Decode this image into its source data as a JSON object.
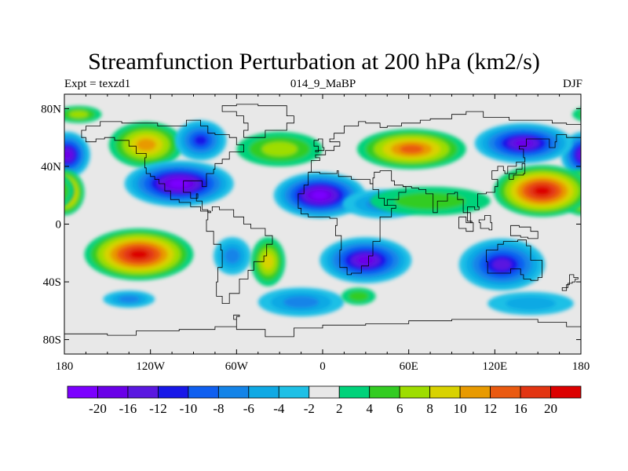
{
  "map": {
    "title": "Streamfunction Perturbation at 200 hPa (km2/s)",
    "subtitle_left": "Expt = texzd1",
    "subtitle_center": "014_9_MaBP",
    "subtitle_right": "DJF",
    "projection": "cylindrical equidistant",
    "lon_range": [
      -180,
      180
    ],
    "lat_range": [
      -90,
      90
    ],
    "lat_ticks": [
      {
        "lat": 80,
        "label": "80N"
      },
      {
        "lat": 40,
        "label": "40N"
      },
      {
        "lat": 0,
        "label": "0"
      },
      {
        "lat": -40,
        "label": "40S"
      },
      {
        "lat": -80,
        "label": "80S"
      }
    ],
    "lon_ticks": [
      {
        "lon": -180,
        "label": "180"
      },
      {
        "lon": -120,
        "label": "120W"
      },
      {
        "lon": -60,
        "label": "60W"
      },
      {
        "lon": 0,
        "label": "0"
      },
      {
        "lon": 60,
        "label": "60E"
      },
      {
        "lon": 120,
        "label": "120E"
      },
      {
        "lon": 180,
        "label": "180"
      }
    ],
    "features": [
      {
        "name": "blob-np-west-neg",
        "lon": -178,
        "lat": 48,
        "rlon": 16,
        "rlat": 16,
        "value": -16
      },
      {
        "name": "blob-np-west-pos",
        "lon": -180,
        "lat": 22,
        "rlon": 14,
        "rlat": 16,
        "value": 16
      },
      {
        "name": "blob-na-pos",
        "lon": -123,
        "lat": 55,
        "rlon": 26,
        "rlat": 16,
        "value": 10
      },
      {
        "name": "blob-na-neg",
        "lon": -100,
        "lat": 28,
        "rlon": 38,
        "rlat": 16,
        "value": -22
      },
      {
        "name": "blob-na-neg-north",
        "lon": -85,
        "lat": 58,
        "rlon": 18,
        "rlat": 14,
        "value": -10
      },
      {
        "name": "blob-atl-pos",
        "lon": -30,
        "lat": 52,
        "rlon": 30,
        "rlat": 12,
        "value": 6
      },
      {
        "name": "blob-eur-pos",
        "lon": 62,
        "lat": 52,
        "rlon": 38,
        "rlat": 14,
        "value": 14
      },
      {
        "name": "blob-asia-neg",
        "lon": -2,
        "lat": 20,
        "rlon": 32,
        "rlat": 16,
        "value": -20
      },
      {
        "name": "blob-asia-trough",
        "lon": 42,
        "lat": 14,
        "rlon": 28,
        "rlat": 10,
        "value": -6
      },
      {
        "name": "blob-ind-pos",
        "lon": 75,
        "lat": 16,
        "rlon": 42,
        "rlat": 10,
        "value": 4
      },
      {
        "name": "blob-pac-high",
        "lon": 153,
        "lat": 23,
        "rlon": 34,
        "rlat": 18,
        "value": 22
      },
      {
        "name": "blob-pac-neg",
        "lon": 140,
        "lat": 56,
        "rlon": 34,
        "rlat": 14,
        "value": -16
      },
      {
        "name": "blob-sp-pos",
        "lon": -128,
        "lat": -21,
        "rlon": 38,
        "rlat": 18,
        "value": 22
      },
      {
        "name": "blob-sa-neg",
        "lon": -63,
        "lat": -22,
        "rlon": 13,
        "rlat": 13,
        "value": -6
      },
      {
        "name": "blob-satl-pos",
        "lon": -38,
        "lat": -26,
        "rlon": 12,
        "rlat": 17,
        "value": 8
      },
      {
        "name": "blob-afr-neg",
        "lon": 30,
        "lat": -25,
        "rlon": 32,
        "rlat": 16,
        "value": -16
      },
      {
        "name": "blob-sind-neg",
        "lon": 125,
        "lat": -28,
        "rlon": 30,
        "rlat": 18,
        "value": -14
      },
      {
        "name": "blob-ssp-neg",
        "lon": -135,
        "lat": -52,
        "rlon": 18,
        "rlat": 6,
        "value": -6
      },
      {
        "name": "blob-so-neg",
        "lon": -15,
        "lat": -54,
        "rlon": 30,
        "rlat": 10,
        "value": -6
      },
      {
        "name": "blob-so-pos",
        "lon": 25,
        "lat": -50,
        "rlon": 12,
        "rlat": 6,
        "value": 4
      },
      {
        "name": "blob-spac-neg",
        "lon": 145,
        "lat": -55,
        "rlon": 30,
        "rlat": 8,
        "value": -4
      },
      {
        "name": "blob-arctic-pos",
        "lon": -170,
        "lat": 76,
        "rlon": 16,
        "rlat": 6,
        "value": 6
      }
    ]
  },
  "colorbar": {
    "labels": [
      "-20",
      "-16",
      "-12",
      "-10",
      "-8",
      "-6",
      "-4",
      "-2",
      "2",
      "4",
      "6",
      "8",
      "10",
      "12",
      "16",
      "20"
    ],
    "colors": [
      "#7c00ff",
      "#6a00e8",
      "#5a18e0",
      "#1818e8",
      "#0f5ff0",
      "#1484e8",
      "#0fa9e4",
      "#1ec0e6",
      "#e8e8e8",
      "#00d27a",
      "#33cc22",
      "#9edd00",
      "#d8d200",
      "#e89a00",
      "#ea5a10",
      "#e23512",
      "#dc0000"
    ]
  },
  "coastline": {
    "lines": [
      [
        [
          -165,
          68
        ],
        [
          -155,
          71
        ],
        [
          -140,
          70
        ],
        [
          -128,
          70
        ],
        [
          -115,
          68
        ],
        [
          -100,
          68
        ],
        [
          -95,
          72
        ],
        [
          -85,
          68
        ],
        [
          -80,
          63
        ],
        [
          -75,
          62
        ],
        [
          -65,
          60
        ],
        [
          -60,
          55
        ],
        [
          -55,
          50
        ],
        [
          -65,
          45
        ],
        [
          -70,
          42
        ],
        [
          -75,
          38
        ],
        [
          -76,
          35
        ],
        [
          -81,
          31
        ],
        [
          -81,
          26
        ],
        [
          -84,
          30
        ],
        [
          -90,
          30
        ],
        [
          -97,
          27
        ],
        [
          -97,
          22
        ],
        [
          -92,
          18
        ],
        [
          -87,
          21
        ],
        [
          -88,
          16
        ],
        [
          -84,
          10
        ],
        [
          -80,
          8
        ],
        [
          -78,
          9
        ]
      ],
      [
        [
          -78,
          9
        ],
        [
          -80,
          3
        ],
        [
          -81,
          -5
        ],
        [
          -76,
          -14
        ],
        [
          -71,
          -18
        ],
        [
          -70,
          -30
        ],
        [
          -73,
          -40
        ],
        [
          -74,
          -50
        ],
        [
          -70,
          -55
        ],
        [
          -66,
          -55
        ],
        [
          -65,
          -48
        ],
        [
          -58,
          -38
        ],
        [
          -52,
          -32
        ],
        [
          -48,
          -26
        ],
        [
          -41,
          -22
        ],
        [
          -39,
          -14
        ],
        [
          -35,
          -8
        ],
        [
          -40,
          -3
        ],
        [
          -50,
          0
        ],
        [
          -55,
          5
        ],
        [
          -62,
          10
        ],
        [
          -72,
          12
        ],
        [
          -77,
          9
        ]
      ],
      [
        [
          -78,
          9
        ],
        [
          -85,
          12
        ],
        [
          -92,
          15
        ],
        [
          -100,
          17
        ],
        [
          -106,
          23
        ],
        [
          -110,
          28
        ],
        [
          -114,
          31
        ],
        [
          -117,
          33
        ],
        [
          -120,
          35
        ],
        [
          -123,
          39
        ],
        [
          -124,
          46
        ],
        [
          -123,
          49
        ],
        [
          -130,
          54
        ],
        [
          -135,
          58
        ],
        [
          -145,
          60
        ],
        [
          -152,
          59
        ],
        [
          -158,
          57
        ],
        [
          -165,
          60
        ],
        [
          -168,
          65
        ],
        [
          -165,
          68
        ]
      ],
      [
        [
          -55,
          60
        ],
        [
          -45,
          60
        ],
        [
          -40,
          65
        ],
        [
          -25,
          70
        ],
        [
          -20,
          75
        ],
        [
          -25,
          82
        ],
        [
          -45,
          83
        ],
        [
          -60,
          82
        ],
        [
          -70,
          78
        ],
        [
          -60,
          75
        ],
        [
          -55,
          70
        ],
        [
          -52,
          65
        ],
        [
          -55,
          60
        ]
      ],
      [
        [
          -10,
          36
        ],
        [
          -8,
          44
        ],
        [
          -2,
          46
        ],
        [
          -5,
          48
        ],
        [
          2,
          51
        ],
        [
          8,
          54
        ],
        [
          12,
          57
        ],
        [
          5,
          59
        ],
        [
          8,
          63
        ],
        [
          15,
          68
        ],
        [
          25,
          71
        ],
        [
          30,
          70
        ],
        [
          40,
          67
        ],
        [
          45,
          68
        ],
        [
          55,
          70
        ],
        [
          68,
          72
        ],
        [
          75,
          73
        ],
        [
          90,
          76
        ],
        [
          100,
          78
        ],
        [
          112,
          74
        ],
        [
          130,
          72
        ],
        [
          140,
          72
        ],
        [
          160,
          70
        ],
        [
          170,
          69
        ],
        [
          180,
          66
        ]
      ],
      [
        [
          -10,
          36
        ],
        [
          -6,
          36
        ],
        [
          -2,
          35
        ],
        [
          10,
          37
        ],
        [
          11,
          33
        ],
        [
          20,
          31
        ],
        [
          30,
          31
        ],
        [
          33,
          28
        ],
        [
          35,
          24
        ],
        [
          39,
          18
        ],
        [
          43,
          13
        ],
        [
          51,
          11
        ],
        [
          48,
          5
        ],
        [
          40,
          -3
        ],
        [
          40,
          -12
        ],
        [
          35,
          -22
        ],
        [
          32,
          -29
        ],
        [
          27,
          -34
        ],
        [
          20,
          -35
        ],
        [
          17,
          -30
        ],
        [
          12,
          -18
        ],
        [
          13,
          -8
        ],
        [
          9,
          -1
        ],
        [
          10,
          4
        ],
        [
          5,
          5
        ],
        [
          -5,
          5
        ],
        [
          -10,
          7
        ],
        [
          -15,
          11
        ],
        [
          -17,
          15
        ],
        [
          -17,
          21
        ],
        [
          -13,
          27
        ],
        [
          -10,
          30
        ],
        [
          -10,
          36
        ]
      ],
      [
        [
          33,
          28
        ],
        [
          35,
          32
        ],
        [
          36,
          36
        ],
        [
          40,
          37
        ],
        [
          48,
          30
        ],
        [
          50,
          27
        ],
        [
          56,
          26
        ],
        [
          58,
          22
        ],
        [
          53,
          17
        ],
        [
          45,
          13
        ],
        [
          43,
          13
        ]
      ],
      [
        [
          56,
          26
        ],
        [
          62,
          25
        ],
        [
          67,
          24
        ],
        [
          72,
          21
        ],
        [
          77,
          8
        ],
        [
          80,
          13
        ],
        [
          80,
          16
        ],
        [
          87,
          21
        ],
        [
          92,
          22
        ],
        [
          94,
          17
        ],
        [
          98,
          16
        ],
        [
          98,
          8
        ],
        [
          103,
          1
        ],
        [
          104,
          2
        ],
        [
          101,
          12
        ],
        [
          106,
          10
        ],
        [
          109,
          12
        ],
        [
          108,
          21
        ],
        [
          114,
          22
        ],
        [
          120,
          26
        ],
        [
          122,
          31
        ],
        [
          118,
          37
        ],
        [
          122,
          40
        ],
        [
          126,
          37
        ],
        [
          127,
          35
        ],
        [
          129,
          40
        ],
        [
          135,
          43
        ],
        [
          141,
          46
        ],
        [
          140,
          52
        ],
        [
          137,
          54
        ],
        [
          142,
          59
        ],
        [
          155,
          59
        ],
        [
          158,
          53
        ],
        [
          162,
          57
        ],
        [
          163,
          62
        ],
        [
          170,
          60
        ],
        [
          180,
          64
        ]
      ],
      [
        [
          114,
          -22
        ],
        [
          114,
          -26
        ],
        [
          115,
          -34
        ],
        [
          122,
          -34
        ],
        [
          131,
          -31
        ],
        [
          138,
          -35
        ],
        [
          140,
          -38
        ],
        [
          145,
          -39
        ],
        [
          150,
          -37
        ],
        [
          153,
          -32
        ],
        [
          153,
          -25
        ],
        [
          145,
          -15
        ],
        [
          142,
          -11
        ],
        [
          136,
          -12
        ],
        [
          131,
          -12
        ],
        [
          126,
          -14
        ],
        [
          122,
          -18
        ],
        [
          114,
          -22
        ]
      ],
      [
        [
          -180,
          -76
        ],
        [
          -150,
          -77
        ],
        [
          -130,
          -74
        ],
        [
          -100,
          -73
        ],
        [
          -75,
          -71
        ],
        [
          -60,
          -64
        ],
        [
          -58,
          -63
        ],
        [
          -62,
          -66
        ],
        [
          -60,
          -73
        ],
        [
          -40,
          -78
        ],
        [
          -20,
          -72
        ],
        [
          0,
          -70
        ],
        [
          30,
          -69
        ],
        [
          60,
          -67
        ],
        [
          90,
          -66
        ],
        [
          120,
          -66
        ],
        [
          150,
          -68
        ],
        [
          170,
          -71
        ],
        [
          180,
          -75
        ]
      ],
      [
        [
          130,
          31
        ],
        [
          133,
          34
        ],
        [
          140,
          35
        ],
        [
          141,
          39
        ],
        [
          141,
          42
        ],
        [
          139,
          38
        ],
        [
          135,
          35
        ],
        [
          130,
          31
        ]
      ],
      [
        [
          -5,
          50
        ],
        [
          -3,
          54
        ],
        [
          -6,
          58
        ],
        [
          -3,
          59
        ],
        [
          0,
          53
        ],
        [
          1,
          51
        ],
        [
          -5,
          50
        ]
      ],
      [
        [
          95,
          5
        ],
        [
          100,
          1
        ],
        [
          105,
          -5
        ],
        [
          100,
          -3
        ],
        [
          95,
          5
        ]
      ],
      [
        [
          109,
          1
        ],
        [
          110,
          -3
        ],
        [
          116,
          -4
        ],
        [
          118,
          1
        ],
        [
          117,
          6
        ],
        [
          113,
          3
        ],
        [
          109,
          1
        ]
      ],
      [
        [
          131,
          -1
        ],
        [
          137,
          -2
        ],
        [
          145,
          -5
        ],
        [
          150,
          -10
        ],
        [
          143,
          -9
        ],
        [
          138,
          -8
        ],
        [
          131,
          -1
        ]
      ],
      [
        [
          172,
          -35
        ],
        [
          175,
          -37
        ],
        [
          178,
          -38
        ],
        [
          176,
          -40
        ],
        [
          174,
          -41
        ],
        [
          171,
          -44
        ],
        [
          167,
          -46
        ],
        [
          170,
          -42
        ],
        [
          172,
          -35
        ]
      ]
    ]
  }
}
